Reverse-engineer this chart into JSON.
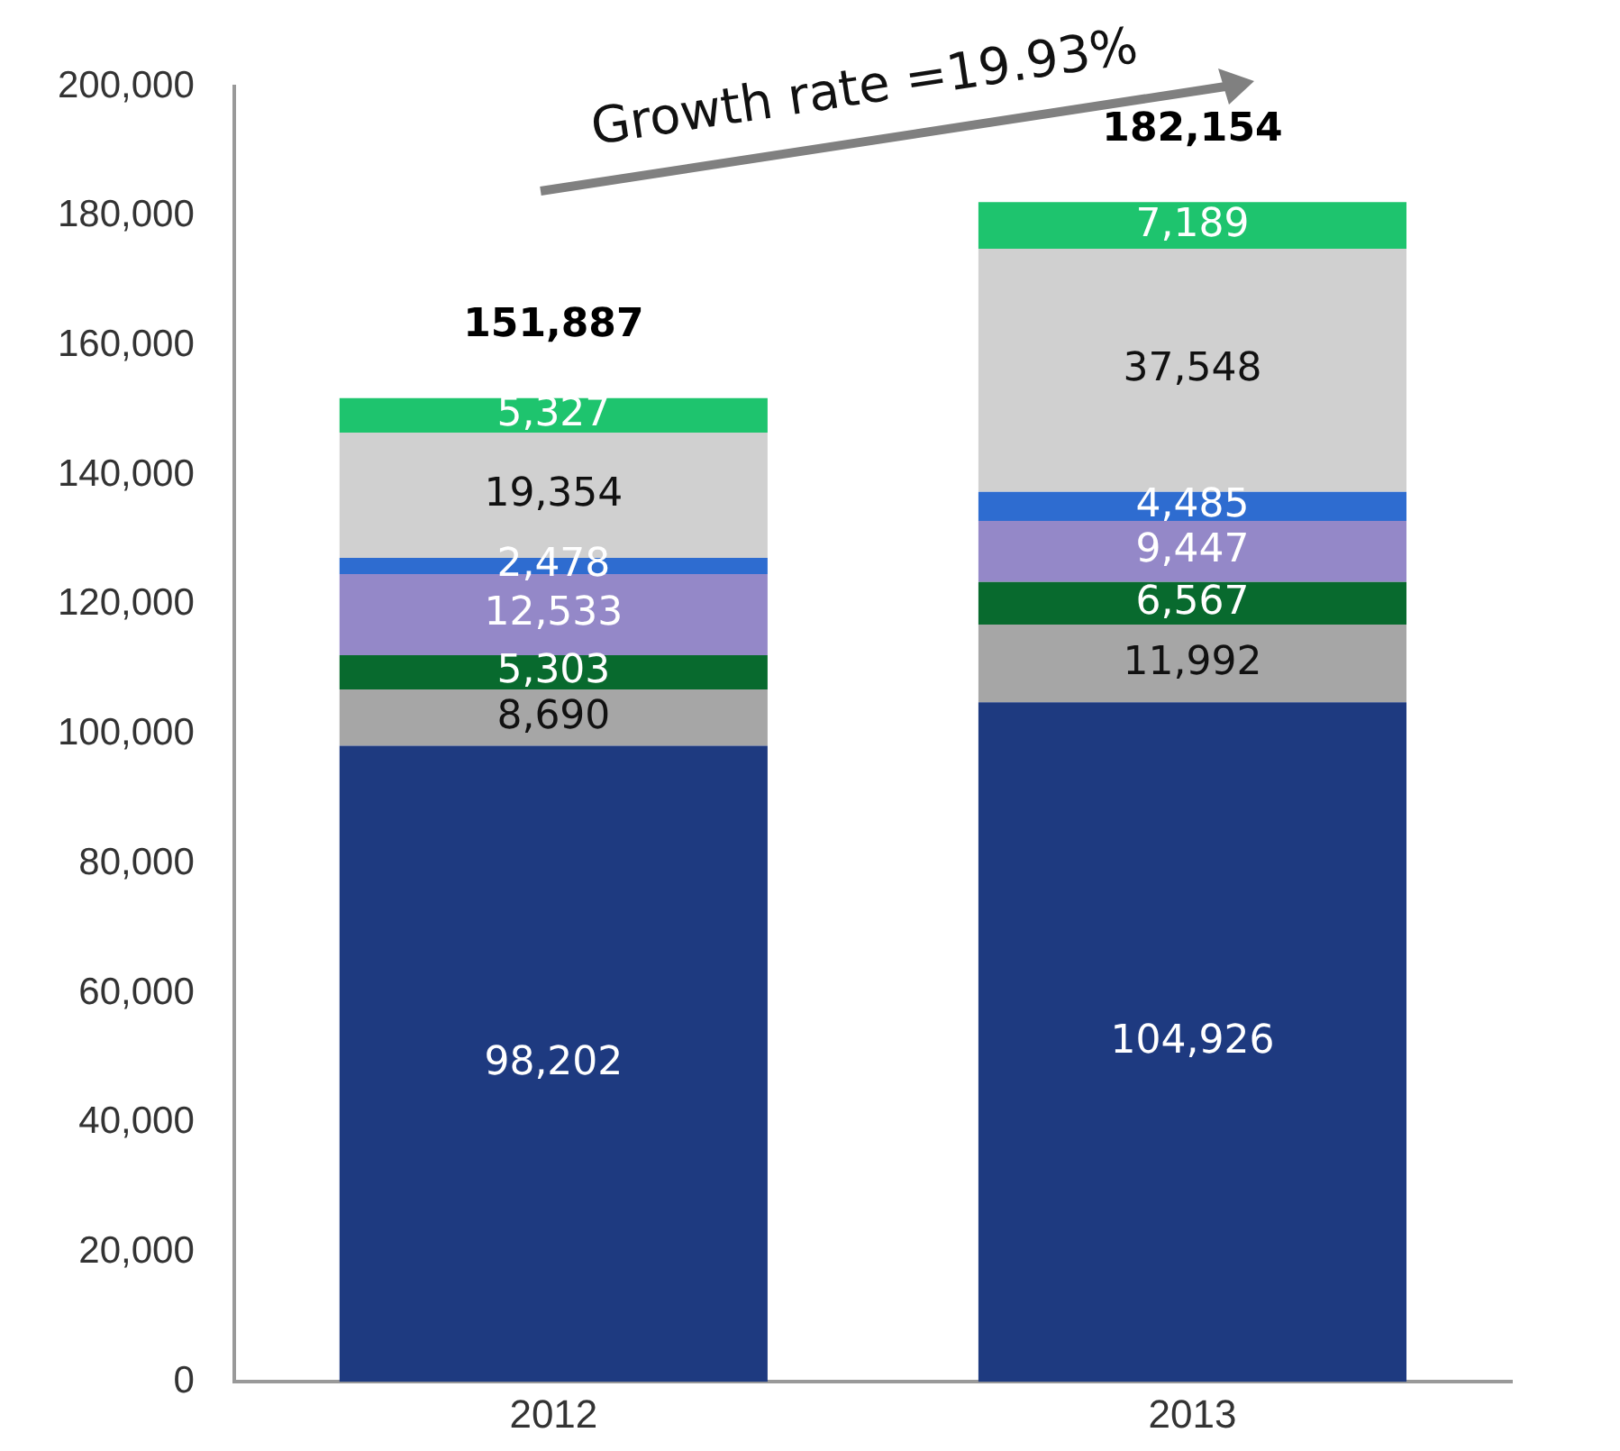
{
  "chart_data": {
    "type": "bar",
    "stacked": true,
    "categories": [
      "2012",
      "2013"
    ],
    "series": [
      {
        "color": "#1e3a80",
        "values": [
          98202,
          104926
        ],
        "value_labels": [
          "98,202",
          "104,926"
        ]
      },
      {
        "color": "#a6a6a6",
        "values": [
          8690,
          11992
        ],
        "value_labels": [
          "8,690",
          "11,992"
        ]
      },
      {
        "color": "#086a2e",
        "values": [
          5303,
          6567
        ],
        "value_labels": [
          "5,303",
          "6,567"
        ]
      },
      {
        "color": "#9488c8",
        "values": [
          12533,
          9447
        ],
        "value_labels": [
          "12,533",
          "9,447"
        ]
      },
      {
        "color": "#2e6cd0",
        "values": [
          2478,
          4485
        ],
        "value_labels": [
          "2,478",
          "4,485"
        ]
      },
      {
        "color": "#d0d0d0",
        "values": [
          19354,
          37548
        ],
        "value_labels": [
          "19,354",
          "37,548"
        ]
      },
      {
        "color": "#1ec46e",
        "values": [
          5327,
          7189
        ],
        "value_labels": [
          "5,327",
          "7,189"
        ]
      }
    ],
    "totals": [
      "151,887",
      "182,154"
    ],
    "ylim": [
      0,
      200000
    ],
    "yticks": [
      0,
      {
        "value": 20000,
        "label": "20,000"
      },
      {
        "value": 40000,
        "label": "40,000"
      },
      {
        "value": 60000,
        "label": "60,000"
      },
      {
        "value": 80000,
        "label": "80,000"
      },
      {
        "value": 100000,
        "label": "100,000"
      },
      {
        "value": 120000,
        "label": "120,000"
      },
      {
        "value": 140000,
        "label": "140,000"
      },
      {
        "value": 160000,
        "label": "160,000"
      },
      {
        "value": 180000,
        "label": "180,000"
      },
      {
        "value": 200000,
        "label": "200,000"
      }
    ],
    "annotations": [
      "Growth rate =19.93%"
    ],
    "grid": false,
    "legend": false
  }
}
